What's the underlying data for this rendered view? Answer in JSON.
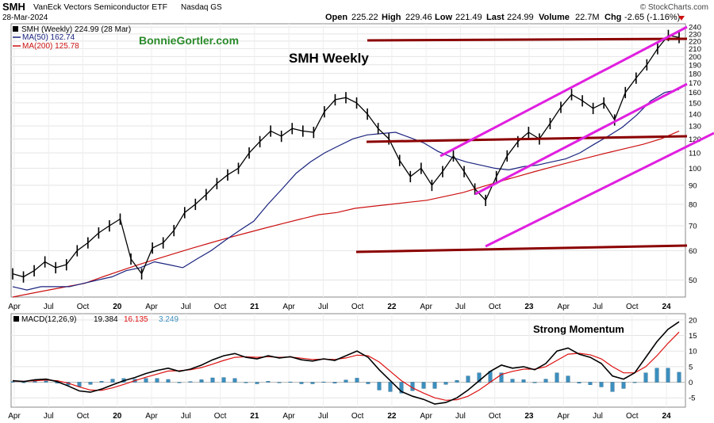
{
  "header": {
    "symbol": "SMH",
    "name": "VanEck Vectors Semiconductor ETF",
    "exchange": "Nasdaq GS",
    "date": "28-Mar-2024",
    "brand": "© StockCharts.com",
    "quote": {
      "open_label": "Open",
      "open": "225.22",
      "high_label": "High",
      "high": "229.46",
      "low_label": "Low",
      "low": "221.49",
      "last_label": "Last",
      "last": "224.99",
      "volume_label": "Volume",
      "volume": "22.7M",
      "chg_label": "Chg",
      "chg": "-2.65 (-1.16%)"
    }
  },
  "legend": {
    "price": "SMH (Weekly) 224.99 (28 Mar)",
    "ma50": "MA(50) 162.74",
    "ma200": "MA(200) 125.78"
  },
  "annotations": {
    "watermark": "BonnieGortler.com",
    "title": "SMH Weekly",
    "momentum": "Strong Momentum"
  },
  "macd_legend": {
    "label": "MACD(12,26,9)",
    "macd": "19.384",
    "signal": "16.135",
    "hist": "3.249"
  },
  "colors": {
    "price": "#000000",
    "ma50": "#1a237e",
    "ma200": "#cc1111",
    "resistance": "#8b0000",
    "channel": "#e020e0",
    "watermark": "#2a8a2a",
    "macd_line": "#000000",
    "macd_signal": "#dd1111",
    "histogram": "#3c8fbf",
    "brand": "#444444"
  },
  "chart_data": [
    {
      "type": "line",
      "scale": "log",
      "description_series": "weekly price bars approximated as closing path",
      "x_tick_labels": [
        "Apr",
        "Jul",
        "Oct",
        "20",
        "Apr",
        "Jul",
        "Oct",
        "21",
        "Apr",
        "Jul",
        "Oct",
        "22",
        "Apr",
        "Jul",
        "Oct",
        "23",
        "Apr",
        "Jul",
        "Oct",
        "24"
      ],
      "y_tick_labels": [
        "240",
        "230",
        "220",
        "210",
        "200",
        "190",
        "180",
        "170",
        "160",
        "150",
        "140",
        "130",
        "120",
        "110",
        "100",
        "90",
        "80",
        "70",
        "60",
        "50"
      ],
      "ylim": [
        45,
        245
      ],
      "series": [
        {
          "values": [
            52,
            51,
            53,
            56,
            54,
            55,
            60,
            63,
            67,
            70,
            73,
            57,
            52,
            61,
            63,
            68,
            76,
            80,
            85,
            91,
            96,
            100,
            110,
            118,
            126,
            122,
            128,
            126,
            125,
            142,
            153,
            155,
            150,
            140,
            128,
            120,
            105,
            95,
            100,
            90,
            98,
            108,
            98,
            88,
            82,
            95,
            108,
            118,
            125,
            120,
            132,
            146,
            158,
            152,
            145,
            150,
            135,
            160,
            175,
            190,
            210,
            228,
            225
          ]
        },
        {
          "values": [
            48,
            47,
            48,
            48,
            48,
            49,
            50,
            51,
            53,
            54,
            56,
            55,
            54,
            57,
            60,
            64,
            68,
            72,
            80,
            88,
            97,
            104,
            110,
            115,
            120,
            123,
            124,
            125,
            121,
            117,
            111,
            107,
            104,
            102,
            100,
            99,
            101,
            102,
            104,
            106,
            110,
            116,
            122,
            129,
            139,
            152,
            160,
            163
          ]
        },
        {
          "values": [
            45,
            46,
            47,
            48,
            49,
            51,
            53,
            55,
            57,
            59,
            61,
            63,
            65,
            67,
            69,
            71,
            73,
            75,
            76,
            78,
            79,
            80,
            81,
            82,
            84,
            86,
            89,
            92,
            95,
            98,
            101,
            104,
            107,
            110,
            113,
            116,
            120,
            126
          ]
        }
      ]
    },
    {
      "type": "bar",
      "x_tick_labels": [
        "Apr",
        "Jul",
        "Oct",
        "20",
        "Apr",
        "Jul",
        "Oct",
        "21",
        "Apr",
        "Jul",
        "Oct",
        "22",
        "Apr",
        "Jul",
        "Oct",
        "23",
        "Apr",
        "Jul",
        "Oct",
        "24"
      ],
      "y_tick_labels": [
        "20",
        "15",
        "10",
        "5",
        "0",
        "-5"
      ],
      "ylim": [
        -8,
        22
      ],
      "series": [
        {
          "values": [
            0.5,
            0.2,
            0.8,
            1.0,
            0.2,
            -1.2,
            -2.8,
            -3.2,
            -2.2,
            -0.8,
            0.5,
            1.5,
            2.8,
            3.8,
            4.5,
            3.5,
            4.2,
            5.5,
            7.2,
            8.5,
            9.2,
            8.0,
            7.5,
            8.5,
            7.8,
            8.2,
            7.2,
            6.8,
            7.5,
            7.0,
            8.5,
            10.0,
            8.0,
            4.0,
            0.5,
            -3.0,
            -4.5,
            -5.5,
            -7.0,
            -6.5,
            -5.0,
            -2.5,
            0.5,
            3.5,
            5.5,
            4.5,
            5.0,
            4.0,
            6.0,
            10.0,
            11.0,
            9.0,
            8.0,
            6.0,
            2.0,
            1.0,
            3.0,
            8.0,
            13.0,
            17.0,
            19.4
          ]
        },
        {
          "values": [
            0.4,
            0.3,
            0.5,
            0.7,
            0.5,
            -0.3,
            -1.5,
            -2.5,
            -2.6,
            -1.8,
            -0.7,
            0.5,
            1.6,
            2.6,
            3.6,
            3.7,
            4.0,
            4.7,
            5.8,
            7.0,
            8.0,
            8.2,
            8.0,
            8.2,
            8.0,
            8.1,
            7.7,
            7.3,
            7.4,
            7.3,
            7.8,
            8.7,
            8.5,
            6.5,
            3.5,
            0.5,
            -1.8,
            -3.5,
            -5.0,
            -5.8,
            -5.6,
            -4.5,
            -2.5,
            0.0,
            2.5,
            3.5,
            4.2,
            4.2,
            5.0,
            7.0,
            9.0,
            9.3,
            8.8,
            7.5,
            5.0,
            3.0,
            3.0,
            5.0,
            8.5,
            12.5,
            16.1
          ]
        },
        {
          "values": [
            0.2,
            -0.1,
            0.3,
            0.4,
            -0.3,
            -0.9,
            -1.4,
            -0.7,
            0.3,
            1.0,
            1.2,
            1.0,
            1.2,
            1.2,
            0.9,
            -0.2,
            0.2,
            0.8,
            1.4,
            1.5,
            1.2,
            -0.2,
            -0.5,
            0.3,
            -0.2,
            0.1,
            -0.5,
            -0.5,
            0.1,
            -0.3,
            0.7,
            1.3,
            -0.5,
            -2.5,
            -3.0,
            -3.5,
            -2.7,
            -2.0,
            -2.0,
            -0.7,
            0.6,
            2.0,
            3.0,
            3.5,
            3.0,
            1.0,
            0.8,
            -0.2,
            1.0,
            3.0,
            2.0,
            -0.3,
            -0.8,
            -1.5,
            -3.0,
            -2.0,
            0.0,
            3.0,
            4.5,
            4.5,
            3.2
          ]
        }
      ]
    }
  ]
}
